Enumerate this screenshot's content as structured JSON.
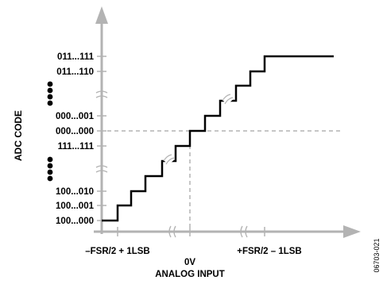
{
  "diagram": {
    "y_axis_label": "ADC CODE",
    "x_axis_label": "ANALOG INPUT",
    "codes": [
      "011...111",
      "011...110",
      "000...001",
      "000...000",
      "111...111",
      "100...010",
      "100...001",
      "100...000"
    ],
    "x_ticks": {
      "left": "–FSR/2 + 1LSB",
      "center": "0V",
      "right": "+FSR/2 – 1LSB"
    },
    "figure_id": "06703-021",
    "colors": {
      "ink": "#000000",
      "axis": "#b3b3b3",
      "dashed": "#8c8c8c"
    }
  }
}
